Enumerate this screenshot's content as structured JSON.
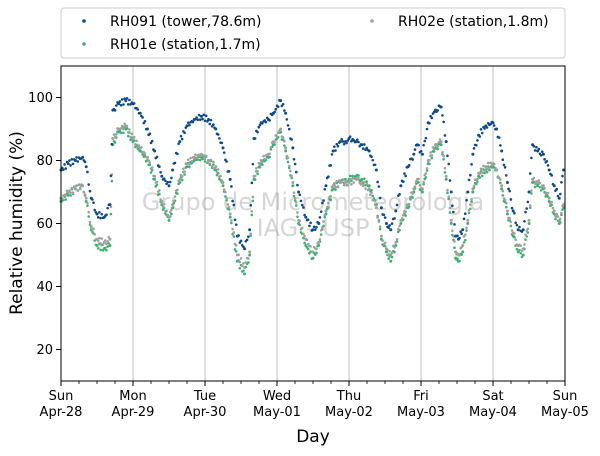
{
  "chart_data": {
    "type": "scatter",
    "xlabel": "Day",
    "ylabel": "Relative humidity (%)",
    "xlim": [
      0,
      7
    ],
    "ylim": [
      10,
      110
    ],
    "grid": "vertical lines at day ticks",
    "legend_position": "above plot, two columns",
    "watermark": [
      "Grupo de Micrometeorologia",
      "IAG - USP"
    ],
    "x_ticks": [
      {
        "x": 0,
        "day": "Sun",
        "date": "Apr-28"
      },
      {
        "x": 1,
        "day": "Mon",
        "date": "Apr-29"
      },
      {
        "x": 2,
        "day": "Tue",
        "date": "Apr-30"
      },
      {
        "x": 3,
        "day": "Wed",
        "date": "May-01"
      },
      {
        "x": 4,
        "day": "Thu",
        "date": "May-02"
      },
      {
        "x": 5,
        "day": "Fri",
        "date": "May-03"
      },
      {
        "x": 6,
        "day": "Sat",
        "date": "May-04"
      },
      {
        "x": 7,
        "day": "Sun",
        "date": "May-05"
      }
    ],
    "y_ticks": [
      20,
      40,
      60,
      80,
      100
    ],
    "series": [
      {
        "name": "RH091 (tower,78.6m)",
        "color": "#0c4a8a",
        "points": [
          [
            0.0,
            77
          ],
          [
            0.1,
            79
          ],
          [
            0.2,
            80
          ],
          [
            0.3,
            81
          ],
          [
            0.35,
            78
          ],
          [
            0.42,
            68
          ],
          [
            0.5,
            63
          ],
          [
            0.6,
            62
          ],
          [
            0.68,
            66
          ],
          [
            0.72,
            96
          ],
          [
            0.8,
            98
          ],
          [
            0.9,
            99
          ],
          [
            1.0,
            98
          ],
          [
            1.1,
            95
          ],
          [
            1.2,
            90
          ],
          [
            1.3,
            83
          ],
          [
            1.4,
            75
          ],
          [
            1.5,
            72
          ],
          [
            1.55,
            77
          ],
          [
            1.65,
            86
          ],
          [
            1.75,
            91
          ],
          [
            1.85,
            93
          ],
          [
            1.95,
            94
          ],
          [
            2.05,
            93
          ],
          [
            2.15,
            90
          ],
          [
            2.25,
            84
          ],
          [
            2.35,
            74
          ],
          [
            2.45,
            56
          ],
          [
            2.55,
            52
          ],
          [
            2.62,
            58
          ],
          [
            2.68,
            87
          ],
          [
            2.78,
            92
          ],
          [
            2.88,
            93
          ],
          [
            2.95,
            95
          ],
          [
            3.05,
            99
          ],
          [
            3.12,
            95
          ],
          [
            3.22,
            84
          ],
          [
            3.3,
            70
          ],
          [
            3.4,
            62
          ],
          [
            3.5,
            58
          ],
          [
            3.58,
            60
          ],
          [
            3.68,
            72
          ],
          [
            3.78,
            83
          ],
          [
            3.88,
            86
          ],
          [
            3.95,
            86
          ],
          [
            4.0,
            87
          ],
          [
            4.1,
            86
          ],
          [
            4.18,
            85
          ],
          [
            4.28,
            83
          ],
          [
            4.38,
            77
          ],
          [
            4.45,
            65
          ],
          [
            4.52,
            60
          ],
          [
            4.58,
            58
          ],
          [
            4.65,
            64
          ],
          [
            4.72,
            72
          ],
          [
            4.82,
            78
          ],
          [
            4.9,
            82
          ],
          [
            4.95,
            85
          ],
          [
            5.02,
            82
          ],
          [
            5.1,
            92
          ],
          [
            5.2,
            96
          ],
          [
            5.28,
            97
          ],
          [
            5.35,
            86
          ],
          [
            5.42,
            70
          ],
          [
            5.48,
            56
          ],
          [
            5.52,
            55
          ],
          [
            5.58,
            58
          ],
          [
            5.65,
            70
          ],
          [
            5.72,
            82
          ],
          [
            5.8,
            88
          ],
          [
            5.9,
            91
          ],
          [
            6.0,
            92
          ],
          [
            6.05,
            90
          ],
          [
            6.12,
            83
          ],
          [
            6.2,
            73
          ],
          [
            6.28,
            64
          ],
          [
            6.35,
            58
          ],
          [
            6.42,
            58
          ],
          [
            6.5,
            70
          ],
          [
            6.55,
            85
          ],
          [
            6.62,
            83
          ],
          [
            6.7,
            82
          ],
          [
            6.78,
            77
          ],
          [
            6.85,
            72
          ],
          [
            6.92,
            68
          ],
          [
            6.98,
            77
          ]
        ]
      },
      {
        "name": "RH01e (station,1.7m)",
        "color": "#3cb371",
        "points": [
          [
            0.0,
            67
          ],
          [
            0.1,
            69
          ],
          [
            0.2,
            71
          ],
          [
            0.3,
            72
          ],
          [
            0.35,
            67
          ],
          [
            0.42,
            58
          ],
          [
            0.5,
            53
          ],
          [
            0.6,
            52
          ],
          [
            0.68,
            53
          ],
          [
            0.72,
            85
          ],
          [
            0.8,
            89
          ],
          [
            0.9,
            90
          ],
          [
            1.0,
            86
          ],
          [
            1.1,
            83
          ],
          [
            1.2,
            80
          ],
          [
            1.3,
            74
          ],
          [
            1.4,
            66
          ],
          [
            1.5,
            61
          ],
          [
            1.55,
            65
          ],
          [
            1.65,
            73
          ],
          [
            1.75,
            78
          ],
          [
            1.85,
            80
          ],
          [
            1.95,
            81
          ],
          [
            2.05,
            80
          ],
          [
            2.15,
            77
          ],
          [
            2.25,
            72
          ],
          [
            2.35,
            62
          ],
          [
            2.45,
            48
          ],
          [
            2.55,
            44
          ],
          [
            2.62,
            50
          ],
          [
            2.68,
            74
          ],
          [
            2.78,
            79
          ],
          [
            2.88,
            81
          ],
          [
            2.95,
            85
          ],
          [
            3.05,
            89
          ],
          [
            3.12,
            83
          ],
          [
            3.22,
            72
          ],
          [
            3.3,
            60
          ],
          [
            3.4,
            53
          ],
          [
            3.5,
            49
          ],
          [
            3.58,
            53
          ],
          [
            3.68,
            63
          ],
          [
            3.78,
            71
          ],
          [
            3.88,
            73
          ],
          [
            3.95,
            74
          ],
          [
            4.0,
            74
          ],
          [
            4.1,
            75
          ],
          [
            4.18,
            74
          ],
          [
            4.28,
            72
          ],
          [
            4.38,
            66
          ],
          [
            4.45,
            55
          ],
          [
            4.52,
            51
          ],
          [
            4.58,
            48
          ],
          [
            4.65,
            53
          ],
          [
            4.72,
            60
          ],
          [
            4.82,
            65
          ],
          [
            4.9,
            70
          ],
          [
            4.95,
            73
          ],
          [
            5.02,
            70
          ],
          [
            5.1,
            79
          ],
          [
            5.2,
            84
          ],
          [
            5.28,
            85
          ],
          [
            5.35,
            74
          ],
          [
            5.42,
            60
          ],
          [
            5.48,
            49
          ],
          [
            5.52,
            48
          ],
          [
            5.58,
            51
          ],
          [
            5.65,
            60
          ],
          [
            5.72,
            70
          ],
          [
            5.8,
            75
          ],
          [
            5.9,
            77
          ],
          [
            6.0,
            78
          ],
          [
            6.05,
            77
          ],
          [
            6.12,
            71
          ],
          [
            6.2,
            63
          ],
          [
            6.28,
            56
          ],
          [
            6.35,
            51
          ],
          [
            6.42,
            50
          ],
          [
            6.5,
            60
          ],
          [
            6.55,
            73
          ],
          [
            6.62,
            72
          ],
          [
            6.7,
            71
          ],
          [
            6.78,
            67
          ],
          [
            6.85,
            63
          ],
          [
            6.92,
            60
          ],
          [
            6.98,
            65
          ]
        ]
      },
      {
        "name": "RH02e (station,1.8m)",
        "color": "#a0a0a0",
        "points": [
          [
            0.0,
            68
          ],
          [
            0.1,
            70
          ],
          [
            0.2,
            71
          ],
          [
            0.3,
            72
          ],
          [
            0.35,
            68
          ],
          [
            0.42,
            59
          ],
          [
            0.5,
            55
          ],
          [
            0.6,
            54
          ],
          [
            0.68,
            55
          ],
          [
            0.72,
            87
          ],
          [
            0.8,
            90
          ],
          [
            0.9,
            91
          ],
          [
            1.0,
            87
          ],
          [
            1.1,
            84
          ],
          [
            1.2,
            81
          ],
          [
            1.3,
            75
          ],
          [
            1.4,
            67
          ],
          [
            1.5,
            62
          ],
          [
            1.55,
            66
          ],
          [
            1.65,
            74
          ],
          [
            1.75,
            79
          ],
          [
            1.85,
            81
          ],
          [
            1.95,
            82
          ],
          [
            2.05,
            80
          ],
          [
            2.15,
            78
          ],
          [
            2.25,
            73
          ],
          [
            2.35,
            63
          ],
          [
            2.45,
            50
          ],
          [
            2.55,
            46
          ],
          [
            2.62,
            51
          ],
          [
            2.68,
            75
          ],
          [
            2.78,
            80
          ],
          [
            2.88,
            82
          ],
          [
            2.95,
            86
          ],
          [
            3.05,
            90
          ],
          [
            3.12,
            84
          ],
          [
            3.22,
            73
          ],
          [
            3.3,
            61
          ],
          [
            3.4,
            55
          ],
          [
            3.5,
            51
          ],
          [
            3.58,
            54
          ],
          [
            3.68,
            64
          ],
          [
            3.78,
            72
          ],
          [
            3.88,
            73
          ],
          [
            3.95,
            73
          ],
          [
            4.0,
            73
          ],
          [
            4.1,
            74
          ],
          [
            4.18,
            73
          ],
          [
            4.28,
            71
          ],
          [
            4.38,
            65
          ],
          [
            4.45,
            56
          ],
          [
            4.52,
            52
          ],
          [
            4.58,
            50
          ],
          [
            4.65,
            54
          ],
          [
            4.72,
            61
          ],
          [
            4.82,
            66
          ],
          [
            4.9,
            71
          ],
          [
            4.95,
            74
          ],
          [
            5.02,
            71
          ],
          [
            5.1,
            80
          ],
          [
            5.2,
            85
          ],
          [
            5.28,
            86
          ],
          [
            5.35,
            75
          ],
          [
            5.42,
            61
          ],
          [
            5.48,
            51
          ],
          [
            5.52,
            50
          ],
          [
            5.58,
            53
          ],
          [
            5.65,
            61
          ],
          [
            5.72,
            71
          ],
          [
            5.8,
            76
          ],
          [
            5.9,
            78
          ],
          [
            6.0,
            79
          ],
          [
            6.05,
            77
          ],
          [
            6.12,
            72
          ],
          [
            6.2,
            64
          ],
          [
            6.28,
            57
          ],
          [
            6.35,
            53
          ],
          [
            6.42,
            52
          ],
          [
            6.5,
            61
          ],
          [
            6.55,
            74
          ],
          [
            6.62,
            73
          ],
          [
            6.7,
            72
          ],
          [
            6.78,
            68
          ],
          [
            6.85,
            64
          ],
          [
            6.92,
            61
          ],
          [
            6.98,
            66
          ]
        ]
      }
    ]
  }
}
